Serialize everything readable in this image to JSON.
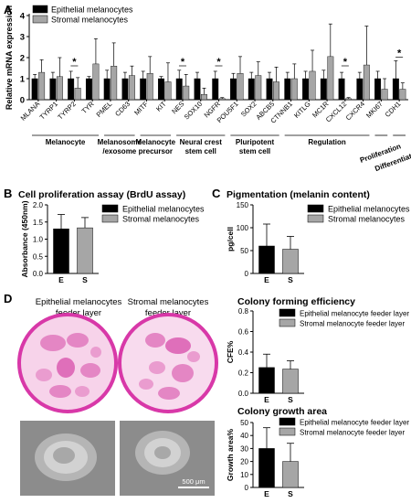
{
  "panels": {
    "a": {
      "letter": "A"
    },
    "b": {
      "letter": "B",
      "title": "Cell proliferation assay (BrdU assay)"
    },
    "c": {
      "letter": "C",
      "title": "Pigmentation (melanin content)"
    },
    "d": {
      "letter": "D",
      "photo_epi_label": [
        "Epithelial melanocytes",
        "feeder layer"
      ],
      "photo_str_label": [
        "Stromal melanocytes",
        "feeder layer"
      ],
      "scale_bar": "500 μm",
      "cfe_title": "Colony forming efficiency",
      "area_title": "Colony growth area"
    }
  },
  "colors": {
    "epithelial": "#000000",
    "stromal": "#a6a6a6",
    "dish": "#d838a8",
    "photo": "#8c8c8c"
  },
  "chart_data": [
    {
      "id": "A",
      "type": "bar",
      "title": "",
      "ylabel": "Relative mRNA expression",
      "ylim": [
        0,
        4
      ],
      "yticks": [
        0,
        1,
        2,
        3,
        4
      ],
      "legend": {
        "position": "top-left",
        "entries": [
          "Epithelial melanocytes",
          "Stromal melanocytes"
        ]
      },
      "categories": [
        "MLANA",
        "TYRP1",
        "TYRP2",
        "TYR",
        "PMEL",
        "CD63",
        "MITF",
        "KIT",
        "NES",
        "SOX10",
        "NGFR",
        "POU5F1",
        "SOX2",
        "ABCB5",
        "CTNNB1",
        "KITLG",
        "MC1R",
        "CXCL12",
        "CXCR4",
        "MKI67",
        "CDH1"
      ],
      "series": [
        {
          "name": "Epithelial melanocytes",
          "values": [
            1,
            1,
            1,
            1,
            1,
            1,
            1,
            1,
            1,
            1,
            1,
            1,
            1,
            1,
            1,
            1,
            1,
            1,
            1,
            1,
            1
          ],
          "errors": [
            0.2,
            0.3,
            0.35,
            0.1,
            0.4,
            0.3,
            0.35,
            0.1,
            0.4,
            0.3,
            0.35,
            0.25,
            0.3,
            0.3,
            0.3,
            0.35,
            0.4,
            0.3,
            0.3,
            0.35,
            0.85
          ]
        },
        {
          "name": "Stromal melanocytes",
          "values": [
            1.3,
            1.1,
            0.55,
            1.7,
            1.6,
            1.15,
            1.25,
            0.85,
            0.65,
            0.25,
            0.05,
            1.25,
            1.15,
            0.85,
            1.0,
            1.35,
            2.05,
            0.05,
            1.65,
            0.5,
            0.5
          ],
          "errors": [
            0.6,
            0.9,
            0.5,
            1.2,
            1.1,
            0.45,
            0.8,
            0.9,
            0.55,
            0.3,
            0.05,
            0.8,
            0.65,
            0.7,
            0.7,
            1.0,
            1.55,
            0.05,
            1.85,
            0.5,
            0.3
          ]
        }
      ],
      "significance": [
        "TYRP2",
        "NES",
        "NGFR",
        "CXCL12",
        "CDH1"
      ],
      "significance_mark": "*",
      "groups": [
        {
          "label": "Melanocyte",
          "from": 0,
          "to": 3
        },
        {
          "label": "Melanosome\n/exosome",
          "from": 4,
          "to": 5
        },
        {
          "label": "Melanocyte\nprecursor",
          "from": 6,
          "to": 7
        },
        {
          "label": "Neural crest\nstem cell",
          "from": 8,
          "to": 10
        },
        {
          "label": "Pluripotent\nstem cell",
          "from": 11,
          "to": 13
        },
        {
          "label": "Regulation",
          "from": 14,
          "to": 18
        },
        {
          "label": "Proliferation",
          "from": 19,
          "to": 19
        },
        {
          "label": "Differentiation",
          "from": 20,
          "to": 20
        }
      ]
    },
    {
      "id": "B",
      "type": "bar",
      "title": "Cell proliferation assay (BrdU assay)",
      "ylabel": "Absorbance (450nm)",
      "ylim": [
        0,
        2.0
      ],
      "yticks": [
        "0.0",
        "0.5",
        "1.0",
        "1.5",
        "2.0"
      ],
      "categories": [
        "E",
        "S"
      ],
      "values": [
        1.3,
        1.33
      ],
      "errors": [
        0.42,
        0.3
      ],
      "legend": [
        "Epithelial melanocytes",
        "Stromal melanocytes"
      ]
    },
    {
      "id": "C",
      "type": "bar",
      "title": "Pigmentation (melanin content)",
      "ylabel": "pg/cell",
      "ylim": [
        0,
        150
      ],
      "yticks": [
        "0",
        "50",
        "100",
        "150"
      ],
      "categories": [
        "E",
        "S"
      ],
      "values": [
        60,
        53
      ],
      "errors": [
        48,
        28
      ],
      "legend": [
        "Epithelial melanocytes",
        "Stromal melanocytes"
      ]
    },
    {
      "id": "D1",
      "type": "bar",
      "title": "Colony forming efficiency",
      "ylabel": "CFE%",
      "ylim": [
        0,
        0.8
      ],
      "yticks": [
        "0.0",
        "0.2",
        "0.4",
        "0.6",
        "0.8"
      ],
      "categories": [
        "E",
        "S"
      ],
      "values": [
        0.25,
        0.235
      ],
      "errors": [
        0.13,
        0.08
      ],
      "legend": [
        "Epithelial melanocyte feeder layer",
        "Stromal melanocyte feeder layer"
      ]
    },
    {
      "id": "D2",
      "type": "bar",
      "title": "Colony growth area",
      "ylabel": "Growth area%",
      "ylim": [
        0,
        50
      ],
      "yticks": [
        "0",
        "10",
        "20",
        "30",
        "40",
        "50"
      ],
      "categories": [
        "E",
        "S"
      ],
      "values": [
        30,
        20
      ],
      "errors": [
        16,
        14
      ],
      "legend": [
        "Epithelial melanocyte feeder layer",
        "Stromal melanocyte feeder layer"
      ]
    }
  ]
}
